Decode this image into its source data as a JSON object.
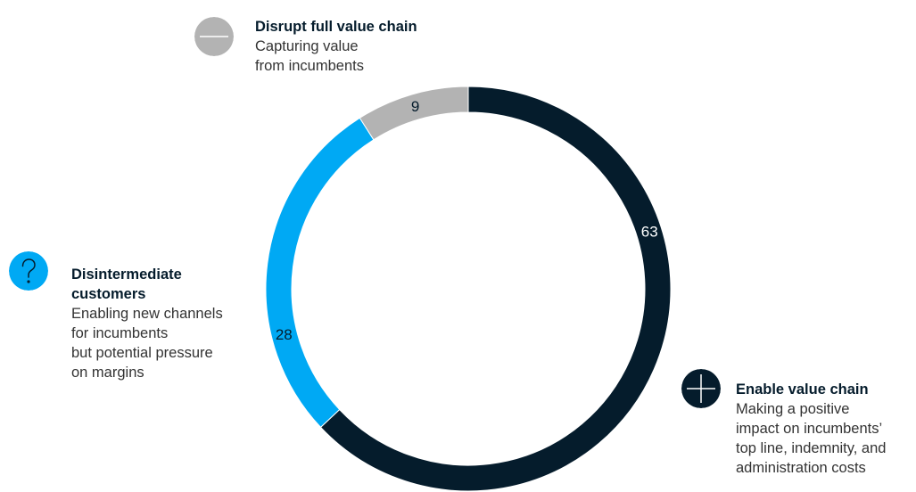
{
  "chart_data": {
    "type": "pie",
    "categories": [
      "Enable value chain",
      "Disintermediate customers",
      "Disrupt full value chain"
    ],
    "values": [
      63,
      28,
      9
    ],
    "value_labels": [
      "63",
      "28",
      "9"
    ],
    "colors": [
      "#051c2c",
      "#00a9f4",
      "#b3b3b3"
    ],
    "legend": [
      {
        "title": "Disrupt full value chain",
        "lines": [
          "Capturing value",
          "from incumbents"
        ],
        "icon": "minus-icon",
        "color": "#b3b3b3"
      },
      {
        "title_lines": [
          "Disintermediate",
          "customers"
        ],
        "lines": [
          "Enabling new channels",
          "for incumbents",
          "but potential pressure",
          "on margins"
        ],
        "icon": "question-mark-icon",
        "color": "#00a9f4"
      },
      {
        "title": "Enable value chain",
        "lines": [
          "Making a positive",
          "impact on incumbents’",
          "top line, indemnity, and",
          "administration costs"
        ],
        "icon": "plus-icon",
        "color": "#051c2c"
      }
    ]
  }
}
